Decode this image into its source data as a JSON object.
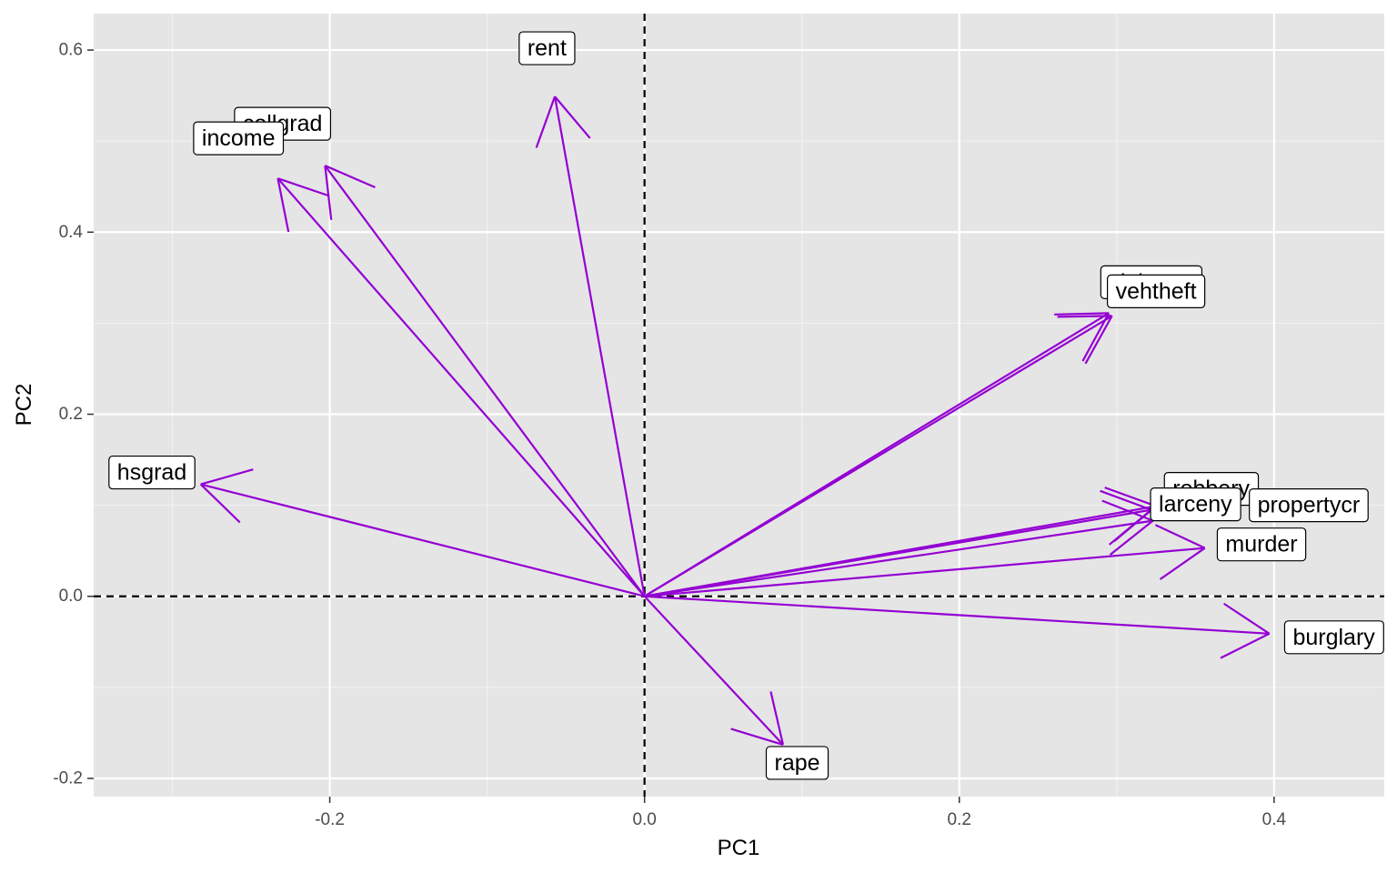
{
  "chart_data": {
    "type": "biplot",
    "xlabel": "PC1",
    "ylabel": "PC2",
    "xlim": [
      -0.35,
      0.47
    ],
    "ylim": [
      -0.22,
      0.64
    ],
    "x_ticks": [
      -0.2,
      0.0,
      0.2,
      0.4
    ],
    "x_tick_labels": [
      "-0.2",
      "0.0",
      "0.2",
      "0.4"
    ],
    "y_ticks": [
      -0.2,
      0.0,
      0.2,
      0.4,
      0.6
    ],
    "y_tick_labels": [
      "-0.2",
      "0.0",
      "0.2",
      "0.4",
      "0.6"
    ],
    "reference_lines": {
      "x": 0,
      "y": 0,
      "style": "dashed"
    },
    "grid": true,
    "arrow_color": "#9400D3",
    "panel_color": "#E5E5E5",
    "origin": [
      0,
      0
    ],
    "vectors": [
      {
        "name": "rent",
        "x": -0.057,
        "y": 0.549
      },
      {
        "name": "collgrad",
        "x": -0.203,
        "y": 0.473
      },
      {
        "name": "income",
        "x": -0.233,
        "y": 0.459
      },
      {
        "name": "hsgrad",
        "x": -0.282,
        "y": 0.123
      },
      {
        "name": "violentcr",
        "x": 0.295,
        "y": 0.311
      },
      {
        "name": "vehtheft",
        "x": 0.297,
        "y": 0.308
      },
      {
        "name": "robbery",
        "x": 0.325,
        "y": 0.099
      },
      {
        "name": "larceny",
        "x": 0.322,
        "y": 0.095
      },
      {
        "name": "propertycr",
        "x": 0.323,
        "y": 0.083
      },
      {
        "name": "murder",
        "x": 0.356,
        "y": 0.053
      },
      {
        "name": "burglary",
        "x": 0.397,
        "y": -0.041
      },
      {
        "name": "rape",
        "x": 0.088,
        "y": -0.163
      }
    ],
    "labels": [
      {
        "text": "violentcr",
        "x": 0.322,
        "y": 0.345
      },
      {
        "text": "vehtheft",
        "x": 0.325,
        "y": 0.335
      },
      {
        "text": "robbery",
        "x": 0.36,
        "y": 0.118
      },
      {
        "text": "propertycr",
        "x": 0.422,
        "y": 0.1
      },
      {
        "text": "collgrad",
        "x": -0.23,
        "y": 0.519
      },
      {
        "text": "income",
        "x": -0.258,
        "y": 0.503
      },
      {
        "text": "rent",
        "x": -0.062,
        "y": 0.602
      },
      {
        "text": "hsgrad",
        "x": -0.313,
        "y": 0.136
      },
      {
        "text": "larceny",
        "x": 0.35,
        "y": 0.101
      },
      {
        "text": "murder",
        "x": 0.392,
        "y": 0.057
      },
      {
        "text": "burglary",
        "x": 0.438,
        "y": -0.045
      },
      {
        "text": "rape",
        "x": 0.097,
        "y": -0.183
      }
    ]
  }
}
